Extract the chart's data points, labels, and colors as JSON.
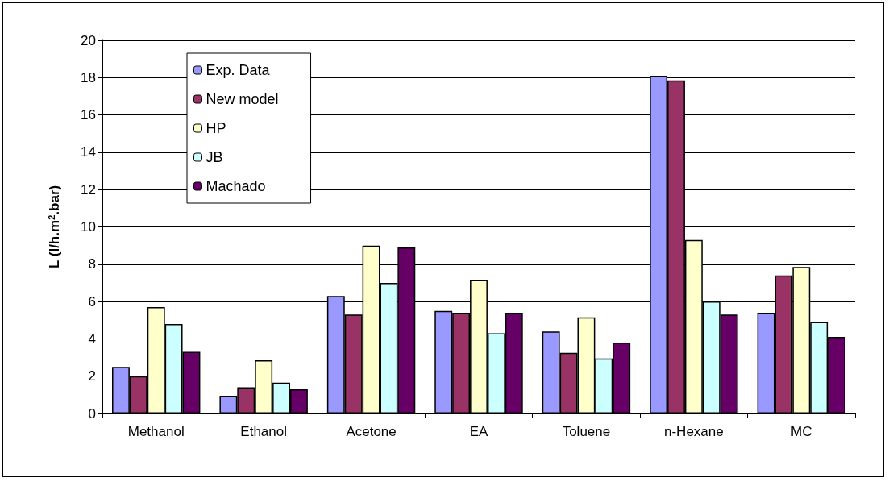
{
  "chart_data": {
    "type": "bar",
    "ylabel": "L (l/h.m$^{2}$.bar)",
    "categories": [
      "Methanol",
      "Ethanol",
      "Acetone",
      "EA",
      "Toluene",
      "n-Hexane",
      "MC"
    ],
    "series": [
      {
        "name": "Exp. Data",
        "color": "#9999ff",
        "values": [
          2.5,
          0.95,
          6.3,
          5.5,
          4.4,
          18.1,
          5.4
        ]
      },
      {
        "name": "New model",
        "color": "#993366",
        "values": [
          2.0,
          1.4,
          5.3,
          5.4,
          3.25,
          17.85,
          7.4
        ]
      },
      {
        "name": "HP",
        "color": "#ffffcc",
        "values": [
          5.7,
          2.85,
          9.0,
          7.15,
          5.15,
          9.3,
          7.85
        ]
      },
      {
        "name": "JB",
        "color": "#ccffff",
        "values": [
          4.8,
          1.65,
          7.0,
          4.3,
          2.95,
          6.0,
          4.9
        ]
      },
      {
        "name": "Machado",
        "color": "#660066",
        "values": [
          3.3,
          1.3,
          8.9,
          5.4,
          3.8,
          5.3,
          4.1
        ]
      }
    ],
    "ylim": [
      0,
      20
    ],
    "yticks": [
      0,
      2,
      4,
      6,
      8,
      10,
      12,
      14,
      16,
      18,
      20
    ],
    "grid": "y",
    "legend": "top left"
  }
}
